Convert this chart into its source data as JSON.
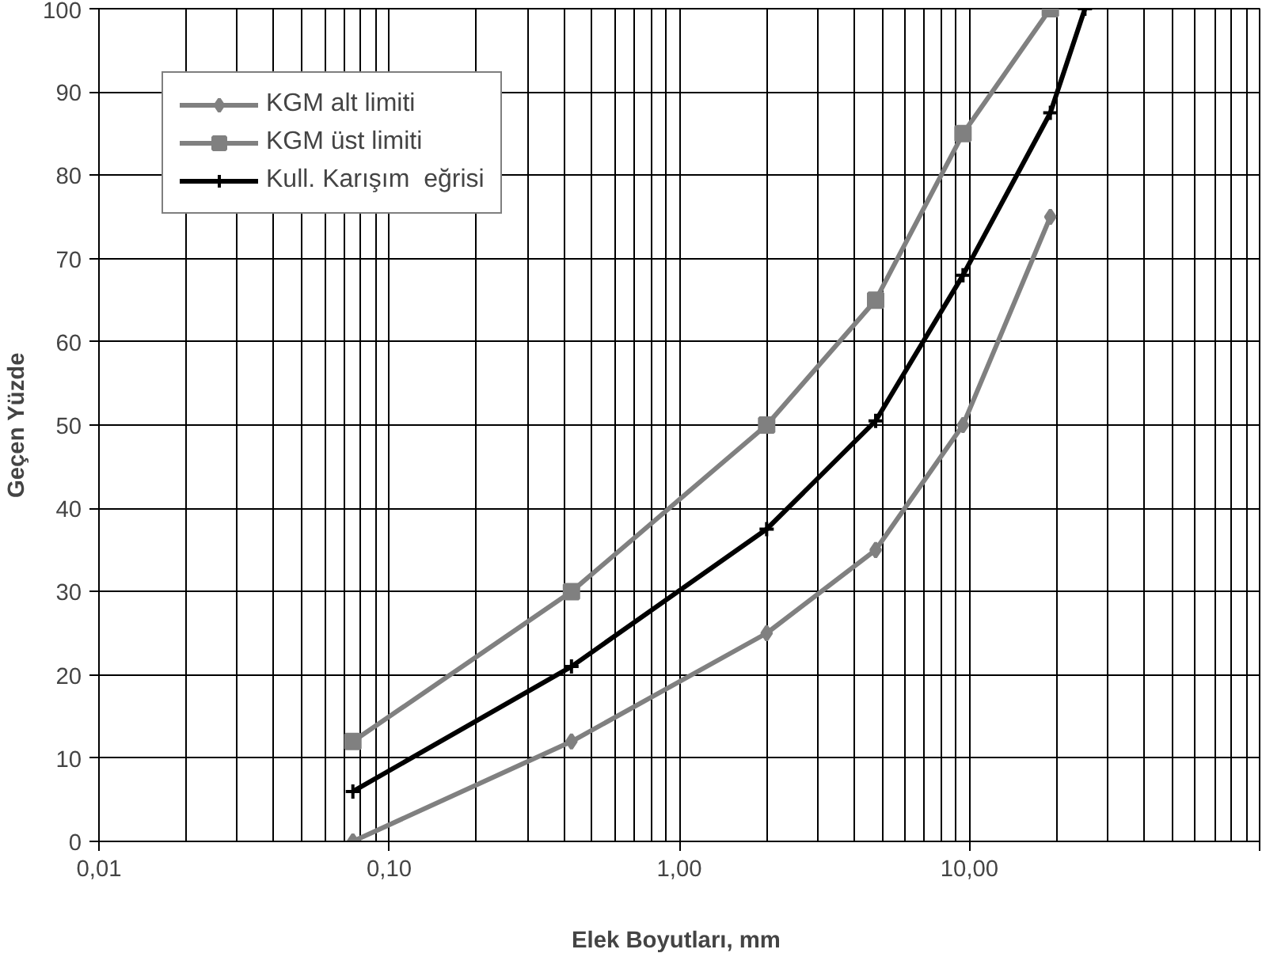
{
  "chart_data": {
    "type": "line",
    "xlabel": "Elek Boyutları,  mm",
    "ylabel": "Geçen Yüzde",
    "log": "x",
    "xlim": [
      0.01,
      100
    ],
    "ylim": [
      0,
      100
    ],
    "xticks": [
      {
        "value": 0.01,
        "label": "0,01"
      },
      {
        "value": 0.1,
        "label": "0,10"
      },
      {
        "value": 1,
        "label": "1,00"
      },
      {
        "value": 10,
        "label": "10,00"
      },
      {
        "value": 100,
        "label": null
      }
    ],
    "yticks": [
      0,
      10,
      20,
      30,
      40,
      50,
      60,
      70,
      80,
      90,
      100
    ],
    "grid": true,
    "legend": "top left",
    "line_style": "solid",
    "series": [
      {
        "name": "KGM alt limiti",
        "color": "#808080",
        "marker": "diamond",
        "x": [
          0.075,
          0.425,
          2,
          4.75,
          9.5,
          19
        ],
        "values": [
          0,
          12,
          25,
          35,
          50,
          75
        ]
      },
      {
        "name": "KGM üst limiti",
        "color": "#808080",
        "marker": "square",
        "x": [
          0.075,
          0.425,
          2,
          4.75,
          9.5,
          19
        ],
        "values": [
          12,
          30,
          50,
          65,
          85,
          100
        ]
      },
      {
        "name": "Kull. Karışım  eğrisi",
        "color": "#000000",
        "marker": "cross",
        "x": [
          0.075,
          0.425,
          2,
          4.75,
          9.5,
          19,
          25
        ],
        "values": [
          6,
          21,
          37.5,
          50.5,
          68,
          87.5,
          100
        ]
      }
    ]
  }
}
